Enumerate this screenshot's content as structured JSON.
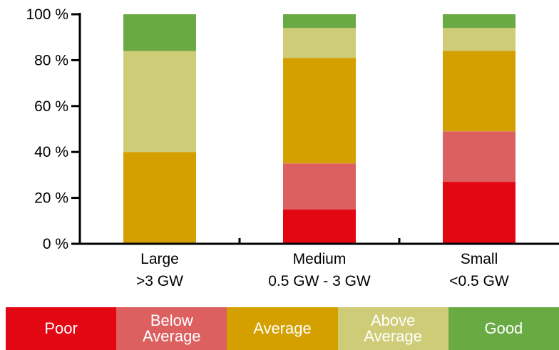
{
  "chart_data": {
    "type": "bar",
    "stacked": true,
    "categories": [
      "Large\n>3 GW",
      "Medium\n0.5 GW - 3 GW",
      "Small\n<0.5 GW"
    ],
    "series": [
      {
        "name": "Poor",
        "color": "#e30613",
        "values": [
          0,
          15,
          27
        ]
      },
      {
        "name": "Below\nAverage",
        "color": "#dd6060",
        "values": [
          0,
          20,
          22
        ]
      },
      {
        "name": "Average",
        "color": "#d4a000",
        "values": [
          40,
          46,
          35
        ]
      },
      {
        "name": "Above\nAverage",
        "color": "#cfcc78",
        "values": [
          44,
          13,
          10
        ]
      },
      {
        "name": "Good",
        "color": "#6aaa45",
        "values": [
          16,
          6,
          6
        ]
      }
    ],
    "ylim": [
      0,
      100
    ],
    "yticks": [
      "0 %",
      "20 %",
      "40 %",
      "60 %",
      "80 %",
      "100 %"
    ],
    "legend_position": "bottom",
    "grid": false
  }
}
